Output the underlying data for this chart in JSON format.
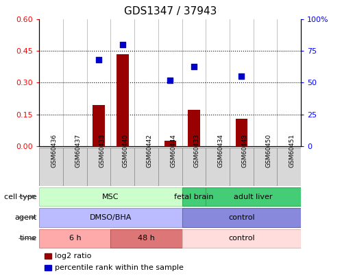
{
  "title": "GDS1347 / 37943",
  "samples": [
    "GSM60436",
    "GSM60437",
    "GSM60438",
    "GSM60440",
    "GSM60442",
    "GSM60444",
    "GSM60433",
    "GSM60434",
    "GSM60448",
    "GSM60450",
    "GSM60451"
  ],
  "log2_ratio": [
    0,
    0,
    0.195,
    0.435,
    0,
    0.025,
    0.17,
    0,
    0.13,
    0,
    0
  ],
  "percentile_rank": [
    null,
    null,
    68,
    80,
    null,
    52,
    63,
    null,
    55,
    null,
    null
  ],
  "ylim_left": [
    0,
    0.6
  ],
  "ylim_right": [
    0,
    100
  ],
  "yticks_left": [
    0,
    0.15,
    0.3,
    0.45,
    0.6
  ],
  "yticks_right": [
    0,
    25,
    50,
    75,
    100
  ],
  "bar_color": "#990000",
  "scatter_color": "#0000cc",
  "cell_type_row": [
    {
      "label": "MSC",
      "start": 0,
      "end": 6,
      "color": "#ccffcc",
      "border_color": "#aaddaa"
    },
    {
      "label": "fetal brain",
      "start": 6,
      "end": 7,
      "color": "#44cc77",
      "border_color": "#33aa55"
    },
    {
      "label": "adult liver",
      "start": 7,
      "end": 11,
      "color": "#44cc77",
      "border_color": "#33aa55"
    }
  ],
  "agent_row": [
    {
      "label": "DMSO/BHA",
      "start": 0,
      "end": 6,
      "color": "#bbbbff",
      "border_color": "#9999cc"
    },
    {
      "label": "control",
      "start": 6,
      "end": 11,
      "color": "#8888dd",
      "border_color": "#6666aa"
    }
  ],
  "time_row": [
    {
      "label": "6 h",
      "start": 0,
      "end": 3,
      "color": "#ffaaaa",
      "border_color": "#dd8888"
    },
    {
      "label": "48 h",
      "start": 3,
      "end": 6,
      "color": "#dd7777",
      "border_color": "#bb5555"
    },
    {
      "label": "control",
      "start": 6,
      "end": 11,
      "color": "#ffdddd",
      "border_color": "#ddbbbb"
    }
  ],
  "row_labels": [
    "cell type",
    "agent",
    "time"
  ],
  "legend_labels": [
    "log2 ratio",
    "percentile rank within the sample"
  ],
  "legend_colors": [
    "#990000",
    "#0000cc"
  ],
  "sample_box_color": "#d8d8d8",
  "sample_box_edge": "#999999"
}
